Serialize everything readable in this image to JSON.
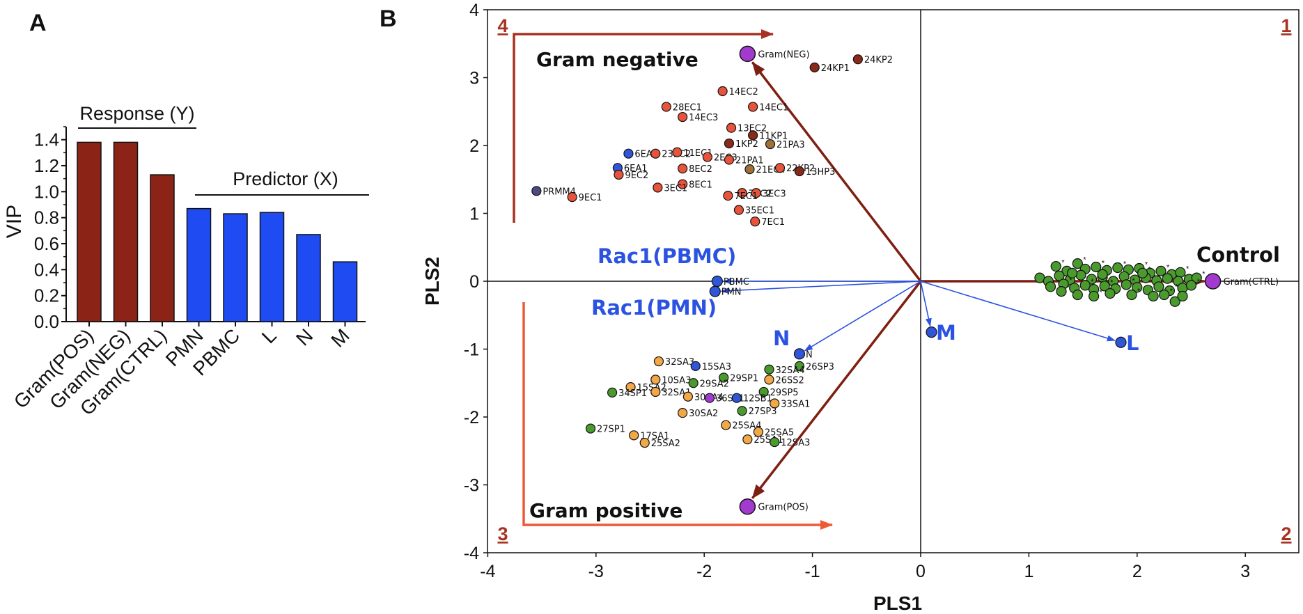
{
  "panel_a_letter": "A",
  "panel_b_letter": "B",
  "colors": {
    "response": "#8b2416",
    "predictor": "#1f4cf2",
    "gram_neg_arrow": "#a83222",
    "gram_pos_arrow": "#ee5a36",
    "dark_arrow": "#7e1f12",
    "blue_arrow": "#2b52e0",
    "red_pt": "#e8533b",
    "darkred_pt": "#8b2a1a",
    "brown_pt": "#a0703a",
    "blue_pt": "#2f56d8",
    "purple_pt": "#a33ad0",
    "green_pt": "#4a9a2e",
    "orange_pt": "#f3a847",
    "navy_pt": "#4d4a80"
  },
  "chart_data": [
    {
      "type": "bar",
      "title": "",
      "ylabel": "VIP",
      "ylim": [
        0,
        1.5
      ],
      "yticks": [
        "0.0",
        "0.2",
        "0.4",
        "0.6",
        "0.8",
        "1.0",
        "1.2",
        "1.4"
      ],
      "categories": [
        "Gram(POS)",
        "Gram(NEG)",
        "Gram(CTRL)",
        "PMN",
        "PBMC",
        "L",
        "N",
        "M"
      ],
      "values": [
        1.38,
        1.38,
        1.13,
        0.87,
        0.83,
        0.84,
        0.67,
        0.46
      ],
      "groups": [
        "response",
        "response",
        "response",
        "predictor",
        "predictor",
        "predictor",
        "predictor",
        "predictor"
      ],
      "group_labels": {
        "response": "Response (Y)",
        "predictor": "Predictor (X)"
      }
    },
    {
      "type": "scatter",
      "xlabel": "PLS1",
      "ylabel": "PLS2",
      "xlim": [
        -4,
        3.5
      ],
      "ylim": [
        -4,
        4
      ],
      "xticks": [
        "-4",
        "-3",
        "-2",
        "-1",
        "0",
        "1",
        "2",
        "3"
      ],
      "yticks": [
        "4",
        "3",
        "2",
        "1",
        "0",
        "-1",
        "-2",
        "-3",
        "-4"
      ],
      "quadrants": [
        "1",
        "2",
        "3",
        "4"
      ],
      "texts": {
        "gram_negative": "Gram negative",
        "gram_positive": "Gram positive",
        "control": "Control",
        "rac1_pbmc": "Rac1(PBMC)",
        "rac1_pmn": "Rac1(PMN)",
        "n": "N",
        "m": "M",
        "l": "L"
      },
      "responses": [
        {
          "name": "Gram(NEG)",
          "x": -1.6,
          "y": 3.35
        },
        {
          "name": "Gram(POS)",
          "x": -1.6,
          "y": -3.32
        },
        {
          "name": "Gram(CTRL)",
          "x": 2.7,
          "y": 0.0
        }
      ],
      "predictors": [
        {
          "name": "PBMC",
          "x": -1.88,
          "y": 0.0
        },
        {
          "name": "PMN",
          "x": -1.9,
          "y": -0.15
        },
        {
          "name": "N",
          "x": -1.12,
          "y": -1.07
        },
        {
          "name": "M",
          "x": 0.1,
          "y": -0.75
        },
        {
          "name": "L",
          "x": 1.85,
          "y": -0.9
        }
      ],
      "gram_negative_points": [
        {
          "name": "24KP2",
          "x": -0.58,
          "y": 3.27,
          "c": "darkred_pt"
        },
        {
          "name": "24KP1",
          "x": -0.98,
          "y": 3.15,
          "c": "darkred_pt"
        },
        {
          "name": "14EC2",
          "x": -1.83,
          "y": 2.8,
          "c": "red_pt"
        },
        {
          "name": "28EC1",
          "x": -2.35,
          "y": 2.57,
          "c": "red_pt"
        },
        {
          "name": "14EC1",
          "x": -1.55,
          "y": 2.57,
          "c": "red_pt"
        },
        {
          "name": "14EC3",
          "x": -2.2,
          "y": 2.42,
          "c": "red_pt"
        },
        {
          "name": "13EC2",
          "x": -1.75,
          "y": 2.26,
          "c": "red_pt"
        },
        {
          "name": "11KP1",
          "x": -1.55,
          "y": 2.15,
          "c": "darkred_pt"
        },
        {
          "name": "1KP2",
          "x": -1.77,
          "y": 2.03,
          "c": "darkred_pt"
        },
        {
          "name": "21PA3",
          "x": -1.39,
          "y": 2.02,
          "c": "brown_pt"
        },
        {
          "name": "6EA1",
          "x": -2.7,
          "y": 1.88,
          "c": "blue_pt"
        },
        {
          "name": "23EC2",
          "x": -2.45,
          "y": 1.88,
          "c": "red_pt"
        },
        {
          "name": "11EC1",
          "x": -2.25,
          "y": 1.9,
          "c": "red_pt"
        },
        {
          "name": "2EC3",
          "x": -1.97,
          "y": 1.83,
          "c": "red_pt"
        },
        {
          "name": "21PA1",
          "x": -1.77,
          "y": 1.79,
          "c": "red_pt"
        },
        {
          "name": "6EA1",
          "x": -2.8,
          "y": 1.67,
          "c": "blue_pt"
        },
        {
          "name": "8EC2",
          "x": -2.2,
          "y": 1.66,
          "c": "red_pt"
        },
        {
          "name": "21EC4",
          "x": -1.58,
          "y": 1.65,
          "c": "brown_pt"
        },
        {
          "name": "22KP2",
          "x": -1.3,
          "y": 1.67,
          "c": "red_pt"
        },
        {
          "name": "13HP3",
          "x": -1.12,
          "y": 1.62,
          "c": "darkred_pt"
        },
        {
          "name": "9EC2",
          "x": -2.79,
          "y": 1.57,
          "c": "red_pt"
        },
        {
          "name": "8EC1",
          "x": -2.2,
          "y": 1.43,
          "c": "red_pt"
        },
        {
          "name": "3EC1",
          "x": -2.43,
          "y": 1.38,
          "c": "red_pt"
        },
        {
          "name": "7EC2",
          "x": -1.65,
          "y": 1.3,
          "c": "red_pt"
        },
        {
          "name": "3EC3",
          "x": -1.52,
          "y": 1.3,
          "c": "red_pt"
        },
        {
          "name": "7EC1",
          "x": -1.78,
          "y": 1.26,
          "c": "red_pt"
        },
        {
          "name": "PRMM4",
          "x": -3.55,
          "y": 1.33,
          "c": "navy_pt"
        },
        {
          "name": "9EC1",
          "x": -3.22,
          "y": 1.24,
          "c": "red_pt"
        },
        {
          "name": "35EC1",
          "x": -1.68,
          "y": 1.05,
          "c": "red_pt"
        },
        {
          "name": "7EC1",
          "x": -1.53,
          "y": 0.88,
          "c": "red_pt"
        }
      ],
      "gram_positive_points": [
        {
          "name": "26SP3",
          "x": -1.12,
          "y": -1.25,
          "c": "green_pt"
        },
        {
          "name": "32SA3",
          "x": -2.42,
          "y": -1.18,
          "c": "orange_pt"
        },
        {
          "name": "15SA3",
          "x": -2.08,
          "y": -1.25,
          "c": "blue_pt"
        },
        {
          "name": "32SA4",
          "x": -1.4,
          "y": -1.3,
          "c": "green_pt"
        },
        {
          "name": "10SA3",
          "x": -2.45,
          "y": -1.45,
          "c": "orange_pt"
        },
        {
          "name": "29SP1",
          "x": -1.82,
          "y": -1.42,
          "c": "green_pt"
        },
        {
          "name": "26SS2",
          "x": -1.4,
          "y": -1.45,
          "c": "orange_pt"
        },
        {
          "name": "29SA2",
          "x": -2.1,
          "y": -1.5,
          "c": "green_pt"
        },
        {
          "name": "15SA2",
          "x": -2.68,
          "y": -1.56,
          "c": "orange_pt"
        },
        {
          "name": "34SP1",
          "x": -2.85,
          "y": -1.64,
          "c": "green_pt"
        },
        {
          "name": "32SA1",
          "x": -2.45,
          "y": -1.63,
          "c": "orange_pt"
        },
        {
          "name": "29SP5",
          "x": -1.45,
          "y": -1.63,
          "c": "green_pt"
        },
        {
          "name": "30SA4",
          "x": -2.15,
          "y": -1.7,
          "c": "orange_pt"
        },
        {
          "name": "36SP1",
          "x": -1.95,
          "y": -1.72,
          "c": "purple_pt"
        },
        {
          "name": "12SB1",
          "x": -1.7,
          "y": -1.72,
          "c": "blue_pt"
        },
        {
          "name": "33SA1",
          "x": -1.35,
          "y": -1.8,
          "c": "orange_pt"
        },
        {
          "name": "27SP3",
          "x": -1.65,
          "y": -1.91,
          "c": "green_pt"
        },
        {
          "name": "30SA2",
          "x": -2.2,
          "y": -1.94,
          "c": "orange_pt"
        },
        {
          "name": "25SA4",
          "x": -1.8,
          "y": -2.12,
          "c": "orange_pt"
        },
        {
          "name": "27SP1",
          "x": -3.05,
          "y": -2.17,
          "c": "green_pt"
        },
        {
          "name": "17SA1",
          "x": -2.65,
          "y": -2.27,
          "c": "orange_pt"
        },
        {
          "name": "25SA5",
          "x": -1.5,
          "y": -2.22,
          "c": "orange_pt"
        },
        {
          "name": "25SA1",
          "x": -1.6,
          "y": -2.33,
          "c": "orange_pt"
        },
        {
          "name": "25SA2",
          "x": -2.55,
          "y": -2.38,
          "c": "orange_pt"
        },
        {
          "name": "12SA3",
          "x": -1.35,
          "y": -2.37,
          "c": "green_pt"
        }
      ],
      "control_points": [
        [
          1.25,
          0.22
        ],
        [
          1.35,
          0.15
        ],
        [
          1.45,
          0.26
        ],
        [
          1.52,
          0.18
        ],
        [
          1.62,
          0.21
        ],
        [
          1.72,
          0.16
        ],
        [
          1.82,
          0.2
        ],
        [
          1.92,
          0.17
        ],
        [
          2.02,
          0.19
        ],
        [
          2.12,
          0.12
        ],
        [
          2.22,
          0.15
        ],
        [
          2.32,
          0.1
        ],
        [
          2.4,
          0.13
        ],
        [
          1.1,
          0.05
        ],
        [
          1.18,
          0.0
        ],
        [
          1.28,
          0.08
        ],
        [
          1.38,
          0.02
        ],
        [
          1.48,
          0.09
        ],
        [
          1.58,
          0.03
        ],
        [
          1.68,
          0.06
        ],
        [
          1.78,
          0.0
        ],
        [
          1.88,
          0.07
        ],
        [
          1.98,
          0.02
        ],
        [
          2.08,
          0.05
        ],
        [
          2.18,
          0.01
        ],
        [
          2.28,
          0.04
        ],
        [
          2.38,
          0.0
        ],
        [
          2.48,
          0.03
        ],
        [
          2.55,
          0.05
        ],
        [
          1.2,
          -0.08
        ],
        [
          1.32,
          -0.04
        ],
        [
          1.42,
          -0.1
        ],
        [
          1.52,
          -0.06
        ],
        [
          1.6,
          -0.12
        ],
        [
          1.7,
          -0.07
        ],
        [
          1.8,
          -0.11
        ],
        [
          1.9,
          -0.05
        ],
        [
          2.0,
          -0.09
        ],
        [
          2.1,
          -0.13
        ],
        [
          2.2,
          -0.08
        ],
        [
          2.3,
          -0.14
        ],
        [
          2.42,
          -0.1
        ],
        [
          2.5,
          -0.06
        ],
        [
          1.45,
          -0.2
        ],
        [
          1.6,
          -0.22
        ],
        [
          1.75,
          -0.18
        ],
        [
          1.95,
          -0.2
        ],
        [
          2.15,
          -0.22
        ],
        [
          2.35,
          -0.3
        ],
        [
          2.42,
          -0.22
        ],
        [
          1.3,
          -0.15
        ],
        [
          1.68,
          0.1
        ],
        [
          2.05,
          0.12
        ],
        [
          1.4,
          0.12
        ],
        [
          2.25,
          -0.2
        ]
      ]
    }
  ]
}
